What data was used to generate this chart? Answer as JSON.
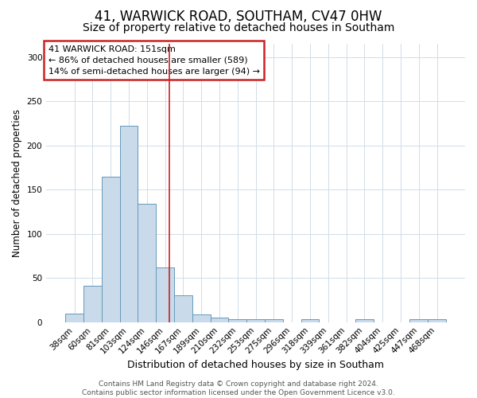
{
  "title": "41, WARWICK ROAD, SOUTHAM, CV47 0HW",
  "subtitle": "Size of property relative to detached houses in Southam",
  "xlabel": "Distribution of detached houses by size in Southam",
  "ylabel": "Number of detached properties",
  "categories": [
    "38sqm",
    "60sqm",
    "81sqm",
    "103sqm",
    "124sqm",
    "146sqm",
    "167sqm",
    "189sqm",
    "210sqm",
    "232sqm",
    "253sqm",
    "275sqm",
    "296sqm",
    "318sqm",
    "339sqm",
    "361sqm",
    "382sqm",
    "404sqm",
    "425sqm",
    "447sqm",
    "468sqm"
  ],
  "values": [
    10,
    41,
    165,
    222,
    134,
    62,
    30,
    9,
    5,
    3,
    3,
    3,
    0,
    3,
    0,
    0,
    3,
    0,
    0,
    3,
    3
  ],
  "bar_color": "#c9daea",
  "bar_edge_color": "#6699bb",
  "red_line_x": 5.23,
  "red_line_color": "#cc2222",
  "annotation_text": "41 WARWICK ROAD: 151sqm\n← 86% of detached houses are smaller (589)\n14% of semi-detached houses are larger (94) →",
  "annotation_box_color": "#cc2222",
  "ylim": [
    0,
    315
  ],
  "yticks": [
    0,
    50,
    100,
    150,
    200,
    250,
    300
  ],
  "footer": "Contains HM Land Registry data © Crown copyright and database right 2024.\nContains public sector information licensed under the Open Government Licence v3.0.",
  "bg_color": "#ffffff",
  "plot_bg_color": "#ffffff",
  "grid_color": "#d0dde8",
  "title_fontsize": 12,
  "subtitle_fontsize": 10,
  "xlabel_fontsize": 9,
  "ylabel_fontsize": 8.5,
  "tick_fontsize": 7.5,
  "annotation_fontsize": 8,
  "footer_fontsize": 6.5
}
